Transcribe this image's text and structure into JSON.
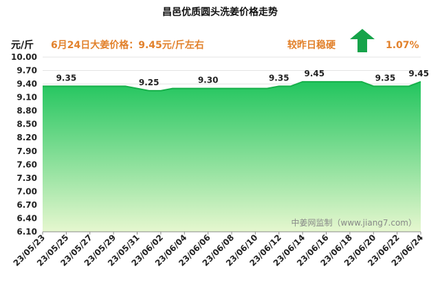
{
  "chart_data": {
    "type": "area",
    "title": "昌邑优质圆头洗姜价格走势",
    "ylabel": "元/斤",
    "headline": "6月24日大姜价格：9.45元/斤左右",
    "change_text": "较昨日稳硬",
    "change_pct": "1.07%",
    "watermark": "中姜网监制（www.jiang7.com）",
    "ylim": [
      6.1,
      10.0
    ],
    "yticks": [
      "10.00",
      "9.70",
      "9.40",
      "9.10",
      "8.80",
      "8.50",
      "8.20",
      "7.90",
      "7.60",
      "7.30",
      "7.00",
      "6.70",
      "6.40",
      "6.10"
    ],
    "xticks": [
      "23/05/23",
      "23/05/25",
      "23/05/27",
      "23/05/29",
      "23/05/31",
      "23/06/02",
      "23/06/04",
      "23/06/06",
      "23/06/08",
      "23/06/10",
      "23/06/12",
      "23/06/14",
      "23/06/16",
      "23/06/18",
      "23/06/20",
      "23/06/22",
      "23/06/24"
    ],
    "x": [
      "23/05/23",
      "23/05/24",
      "23/05/25",
      "23/05/26",
      "23/05/27",
      "23/05/28",
      "23/05/29",
      "23/05/30",
      "23/05/31",
      "23/06/01",
      "23/06/02",
      "23/06/03",
      "23/06/04",
      "23/06/05",
      "23/06/06",
      "23/06/07",
      "23/06/08",
      "23/06/09",
      "23/06/10",
      "23/06/11",
      "23/06/12",
      "23/06/13",
      "23/06/14",
      "23/06/15",
      "23/06/16",
      "23/06/17",
      "23/06/18",
      "23/06/19",
      "23/06/20",
      "23/06/21",
      "23/06/22",
      "23/06/23",
      "23/06/24"
    ],
    "values": [
      9.35,
      9.35,
      9.35,
      9.35,
      9.35,
      9.35,
      9.35,
      9.35,
      9.3,
      9.25,
      9.25,
      9.3,
      9.3,
      9.3,
      9.3,
      9.3,
      9.3,
      9.3,
      9.3,
      9.3,
      9.35,
      9.35,
      9.45,
      9.45,
      9.45,
      9.45,
      9.45,
      9.45,
      9.35,
      9.35,
      9.35,
      9.35,
      9.45
    ],
    "data_labels": [
      {
        "x": "23/05/25",
        "text": "9.35"
      },
      {
        "x": "23/06/01",
        "text": "9.25"
      },
      {
        "x": "23/06/06",
        "text": "9.30"
      },
      {
        "x": "23/06/12",
        "text": "9.35"
      },
      {
        "x": "23/06/15",
        "text": "9.45"
      },
      {
        "x": "23/06/21",
        "text": "9.35"
      },
      {
        "x": "23/06/24",
        "text": "9.45"
      }
    ],
    "grid": true,
    "colors": {
      "fill_top": "#22c55e",
      "fill_bottom": "#e6f7cf",
      "line": "#17b04a",
      "arrow": "#16a34a",
      "info_text": "#e2812b"
    }
  }
}
